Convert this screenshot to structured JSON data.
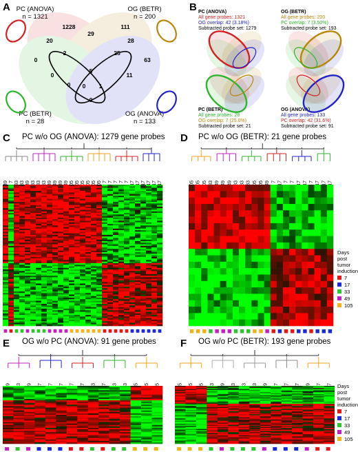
{
  "panels": {
    "A": {
      "letter": "A",
      "sets": [
        {
          "name": "PC (ANOVA)",
          "n": "n = 1321",
          "color": "#d42020"
        },
        {
          "name": "OG (BETR)",
          "n": "n = 200",
          "color": "#b8860b"
        },
        {
          "name": "PC (BETR)",
          "n": "n = 28",
          "color": "#2db52d"
        },
        {
          "name": "OG (ANOVA)",
          "n": "n = 133",
          "color": "#2222c8"
        }
      ],
      "regions": [
        "1228",
        "29",
        "111",
        "20",
        "28",
        "0",
        "2",
        "25",
        "63",
        "5",
        "0",
        "0",
        "11",
        "0",
        "1",
        "0"
      ]
    },
    "B": {
      "letter": "B",
      "blocks": [
        {
          "title": "PC (ANOVA)",
          "line1": "All gene probes: 1321",
          "line2": "OG overlap: 42 (3.18%)",
          "line3": "Subtracted probe set: 1279",
          "c1": "#d42020",
          "c2": "#2222c8"
        },
        {
          "title": "OG (BETR)",
          "line1": "All gene probes: 200",
          "line2": "PC overlap: 7 (3.50%)",
          "line3": "Subtracted probe set: 193",
          "c1": "#b8860b",
          "c2": "#2db52d"
        },
        {
          "title": "PC (BETR)",
          "line1": "All gene probes: 28",
          "line2": "OG overlap: 7 (25.0%)",
          "line3": "Subtracted probe set: 21",
          "c1": "#2db52d",
          "c2": "#b8860b"
        },
        {
          "title": "OG (ANOVA)",
          "line1": "All gene probes: 133",
          "line2": "PC overlap: 42 (31.6%)",
          "line3": "Subtracted probe set: 91",
          "c1": "#2222c8",
          "c2": "#d42020"
        }
      ]
    },
    "C": {
      "letter": "C",
      "title": "PC w/o OG (ANOVA): 1279 gene probes",
      "cols": [
        "49",
        "7",
        "33",
        "33",
        "49",
        "33",
        "33",
        "33",
        "49",
        "49",
        "49",
        "49",
        "105",
        "105",
        "105",
        "105",
        "105",
        "105",
        "7",
        "7",
        "7",
        "7",
        "7",
        "17",
        "17",
        "17",
        "17",
        "17",
        "17"
      ]
    },
    "D": {
      "letter": "D",
      "title": "PC w/o OG (BETR): 21 gene probes",
      "cols": [
        "105",
        "105",
        "105",
        "33",
        "49",
        "49",
        "49",
        "33",
        "33",
        "33",
        "105",
        "105",
        "49",
        "7",
        "17",
        "7",
        "7",
        "17",
        "17",
        "7",
        "17",
        "17",
        "17"
      ]
    },
    "E": {
      "letter": "E",
      "title": "OG w/o PC (ANOVA): 91 gene probes",
      "cols": [
        "49",
        "33",
        "49",
        "17",
        "17",
        "17",
        "7",
        "7",
        "33",
        "7",
        "33",
        "33",
        "105",
        "105",
        "105"
      ]
    },
    "F": {
      "letter": "F",
      "title": "OG w/o PC (BETR): 193 gene probes",
      "cols": [
        "105",
        "105",
        "105",
        "33",
        "49",
        "33",
        "33",
        "33",
        "49",
        "17",
        "17",
        "17",
        "49",
        "7",
        "7"
      ]
    }
  },
  "legend": {
    "title_lines": [
      "Days",
      "post",
      "tumor",
      "induction"
    ],
    "items": [
      {
        "label": "7",
        "color": "#e01818"
      },
      {
        "label": "17",
        "color": "#1a2ad6"
      },
      {
        "label": "33",
        "color": "#2ec42e"
      },
      {
        "label": "49",
        "color": "#c41fc4"
      },
      {
        "label": "105",
        "color": "#f2b21a"
      }
    ]
  }
}
